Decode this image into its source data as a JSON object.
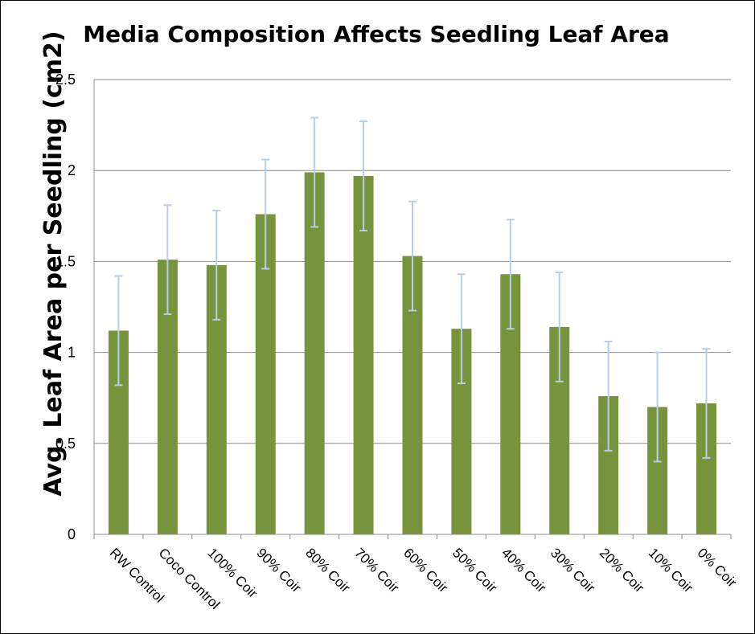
{
  "chart_data": {
    "type": "bar",
    "title": "Media Composition Affects Seedling Leaf Area",
    "xlabel": "",
    "ylabel": "Avg. Leaf Area per Seedling (cm2)",
    "ylim": [
      0,
      2.5
    ],
    "yticks": [
      0,
      0.5,
      1,
      1.5,
      2,
      2.5
    ],
    "ytick_labels": [
      "0",
      "0.5",
      "1",
      "1.5",
      "2",
      "2.5"
    ],
    "grid": true,
    "legend": "none",
    "categories": [
      "RW Control",
      "Coco Control",
      "100% Coir",
      "90% Coir",
      "80% Coir",
      "70% Coir",
      "60% Coir",
      "50% Coir",
      "40% Coir",
      "30% Coir",
      "20% Coir",
      "10% Coir",
      "0% Coir"
    ],
    "series": [
      {
        "values": [
          1.12,
          1.51,
          1.48,
          1.76,
          1.99,
          1.97,
          1.53,
          1.13,
          1.43,
          1.14,
          0.76,
          0.7,
          0.72
        ],
        "error": [
          0.3,
          0.3,
          0.3,
          0.3,
          0.3,
          0.3,
          0.3,
          0.3,
          0.3,
          0.3,
          0.3,
          0.3,
          0.3
        ],
        "color": "#77933c",
        "error_color": "#b9cde5"
      }
    ]
  }
}
